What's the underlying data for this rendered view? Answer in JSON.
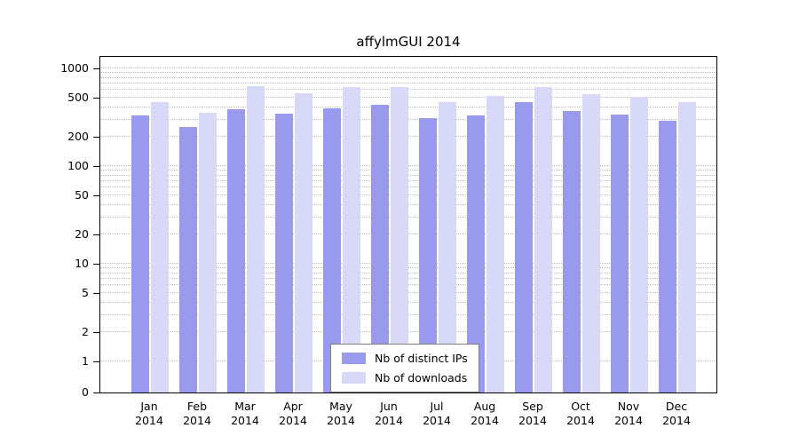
{
  "chart_data": {
    "type": "bar",
    "title": "affylmGUI 2014",
    "year": "2014",
    "scale": "log",
    "grid": true,
    "legend_position": "bottom-center",
    "categories": [
      "Jan",
      "Feb",
      "Mar",
      "Apr",
      "May",
      "Jun",
      "Jul",
      "Aug",
      "Sep",
      "Oct",
      "Nov",
      "Dec"
    ],
    "y_ticks": [
      0,
      1,
      2,
      5,
      10,
      20,
      50,
      100,
      200,
      500,
      1000
    ],
    "ylim": [
      0,
      1000
    ],
    "series": [
      {
        "name": "Nb of distinct IPs",
        "color": "#9999ee",
        "values": [
          330,
          250,
          380,
          345,
          390,
          420,
          310,
          330,
          450,
          370,
          340,
          290
        ]
      },
      {
        "name": "Nb of downloads",
        "color": "#d8d8f8",
        "values": [
          450,
          350,
          660,
          560,
          640,
          650,
          450,
          520,
          640,
          540,
          510,
          450
        ]
      }
    ]
  }
}
